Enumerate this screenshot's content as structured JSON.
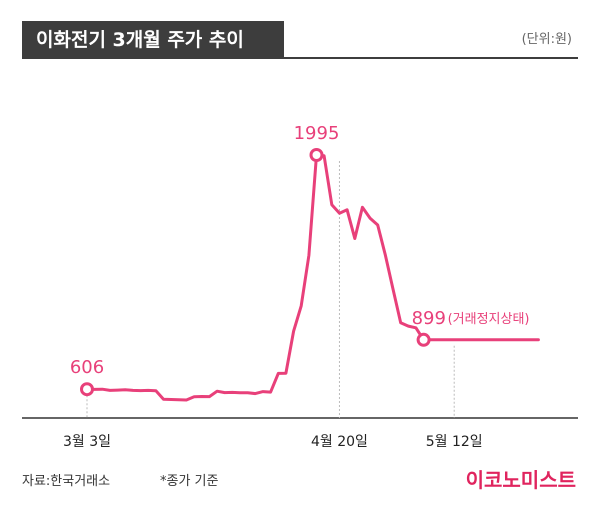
{
  "header": {
    "title": "이화전기 3개월 주가 추이",
    "unit": "(단위:원)"
  },
  "footer": {
    "source": "자료:한국거래소",
    "note": "*종가 기준",
    "logo": "이코노미스트"
  },
  "colors": {
    "line": "#e8407a",
    "title_bg": "#3d3d3d",
    "axis": "#333333",
    "guide": "#bbbbbb"
  },
  "chart_data": {
    "type": "line",
    "title": "이화전기 3개월 주가 추이",
    "unit": "(단위:원)",
    "ylim": [
      350,
      2050
    ],
    "grid": false,
    "x_ticks": [
      {
        "label": "3월 3일",
        "index": 0
      },
      {
        "label": "4월 20일",
        "index": 33
      },
      {
        "label": "5월 12일",
        "index": 48
      }
    ],
    "series": [
      {
        "values": [
          606,
          605,
          606,
          599,
          601,
          603,
          599,
          598,
          599,
          597,
          547,
          545,
          543,
          542,
          561,
          563,
          562,
          594,
          586,
          587,
          585,
          585,
          580,
          592,
          589,
          700,
          701,
          950,
          1100,
          1400,
          1995,
          1990,
          1700,
          1650,
          1670,
          1500,
          1685,
          1620,
          1580,
          1400,
          1200,
          1000,
          980,
          970,
          899,
          899,
          899,
          899,
          899,
          899,
          899,
          899,
          899,
          899,
          899,
          899,
          899,
          899,
          899,
          899
        ],
        "x_index": [
          0,
          1,
          2,
          3,
          4,
          5,
          6,
          7,
          8,
          9,
          10,
          11,
          12,
          13,
          14,
          15,
          16,
          17,
          18,
          19,
          20,
          21,
          22,
          23,
          24,
          25,
          26,
          27,
          28,
          29,
          30,
          31,
          32,
          33,
          34,
          35,
          36,
          37,
          38,
          39,
          40,
          41,
          42,
          43,
          44,
          45,
          46,
          47,
          48,
          49,
          50,
          51,
          52,
          53,
          54,
          55,
          56,
          57,
          58,
          59
        ]
      }
    ],
    "annotations": [
      {
        "label": "606",
        "value": 606,
        "index": 0
      },
      {
        "label": "1995",
        "value": 1995,
        "index": 30
      },
      {
        "label": "899",
        "value": 899,
        "index": 44,
        "note": "(거래정지상태)"
      }
    ]
  }
}
